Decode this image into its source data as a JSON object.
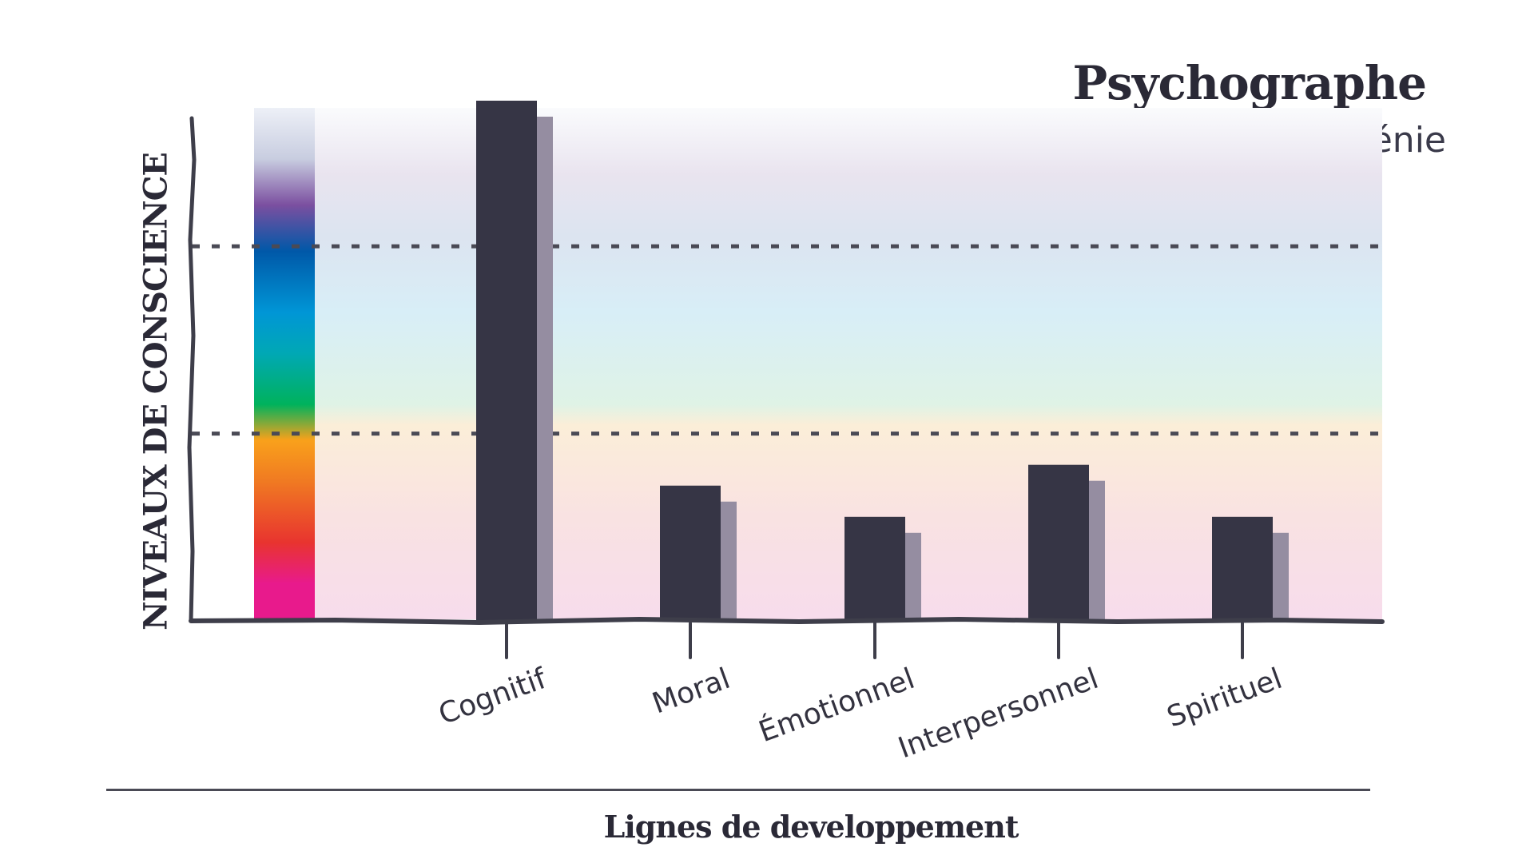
{
  "chart_data": {
    "type": "bar",
    "title": "Psychographe",
    "subtitle": "Le criminel de génie",
    "ylabel": "NIVEAUX DE CONSCIENCE",
    "xlabel": "Lignes de developpement",
    "categories": [
      "Cognitif",
      "Moral",
      "Émotionnel",
      "Interpersonnel",
      "Spirituel"
    ],
    "values": [
      1.0,
      0.26,
      0.2,
      0.3,
      0.2
    ],
    "ylim": [
      0,
      1
    ],
    "reference_lines": [
      0.36,
      0.72
    ],
    "grid": false,
    "colors": {
      "bar": "#363545",
      "bar_shadow": "#958da1",
      "axis": "#3e3e4a",
      "spectrum": [
        "#e81a8c",
        "#e8342f",
        "#f07a22",
        "#f9a11b",
        "#00b25c",
        "#00a8b5",
        "#0096d6",
        "#0058a8",
        "#7b4fa0",
        "#c8cde0",
        "#edf0f7"
      ]
    }
  }
}
